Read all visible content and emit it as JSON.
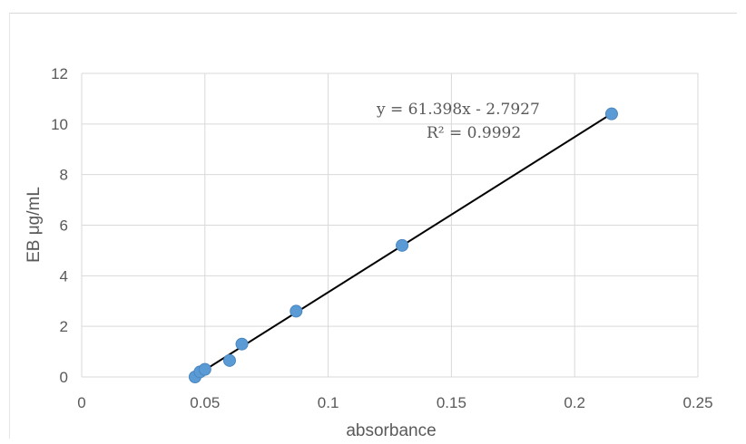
{
  "chart_data": {
    "type": "scatter",
    "xlabel": "absorbance",
    "ylabel": "EB μg/mL",
    "xlim": [
      0,
      0.25
    ],
    "ylim": [
      0,
      12
    ],
    "x_ticks": [
      "0",
      "0.05",
      "0.1",
      "0.15",
      "0.2",
      "0.25"
    ],
    "y_ticks": [
      "0",
      "2",
      "4",
      "6",
      "8",
      "10",
      "12"
    ],
    "grid": true,
    "points": [
      {
        "x": 0.046,
        "y": 0.0
      },
      {
        "x": 0.048,
        "y": 0.2
      },
      {
        "x": 0.05,
        "y": 0.3
      },
      {
        "x": 0.06,
        "y": 0.65
      },
      {
        "x": 0.065,
        "y": 1.3
      },
      {
        "x": 0.087,
        "y": 2.6
      },
      {
        "x": 0.13,
        "y": 5.2
      },
      {
        "x": 0.215,
        "y": 10.4
      }
    ],
    "trendline": {
      "slope": 61.398,
      "intercept": -2.7927,
      "x_range": [
        0.046,
        0.215
      ],
      "equation": "y = 61.398x - 2.7927",
      "r_squared": "R² = 0.9992"
    },
    "colors": {
      "points": "#5b9bd5",
      "trendline": "#000000",
      "grid": "#d9d9d9"
    }
  }
}
